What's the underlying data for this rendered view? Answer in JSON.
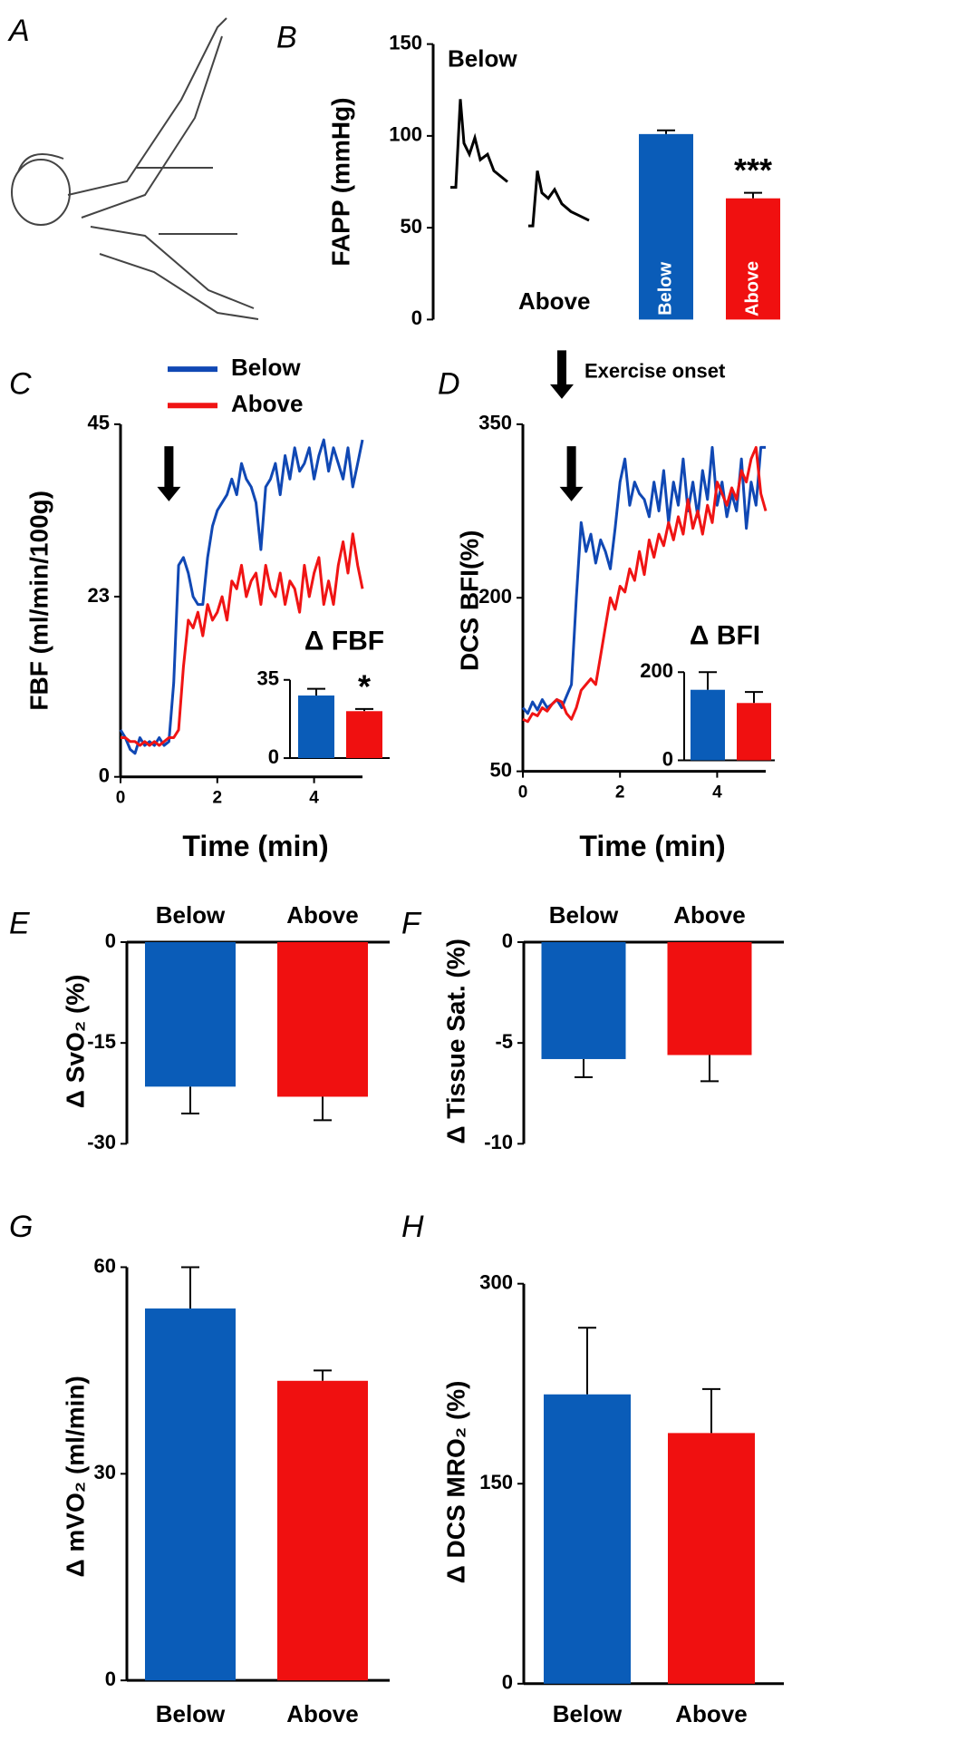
{
  "panel_a": {
    "label": "A"
  },
  "chart_data": [
    {
      "type": "bar",
      "panel": "B",
      "ylabel": "FAPP (mmHg)",
      "trace_labels": [
        "Below",
        "Above"
      ],
      "categories": [
        "Below",
        "Above"
      ],
      "values": [
        101,
        66
      ],
      "errors": [
        2,
        3
      ],
      "colors": [
        "#0a5cb8",
        "#f01010"
      ],
      "significance": [
        null,
        "***"
      ],
      "category_position": "inside",
      "ylim": [
        0,
        150
      ],
      "yticks": [
        0,
        50,
        100,
        150
      ]
    },
    {
      "type": "line",
      "panel": "C",
      "ylabel": "FBF (ml/min/100g)",
      "xlabel": "Time (min)",
      "legend": true,
      "onset_x": 1,
      "x": [
        0,
        0.1,
        0.2,
        0.3,
        0.4,
        0.5,
        0.6,
        0.7,
        0.8,
        0.9,
        1,
        1.1,
        1.2,
        1.3,
        1.4,
        1.5,
        1.6,
        1.7,
        1.8,
        1.9,
        2,
        2.1,
        2.2,
        2.3,
        2.4,
        2.5,
        2.6,
        2.7,
        2.8,
        2.9,
        3,
        3.1,
        3.2,
        3.3,
        3.4,
        3.5,
        3.6,
        3.7,
        3.8,
        3.9,
        4,
        4.1,
        4.2,
        4.3,
        4.4,
        4.5,
        4.6,
        4.7,
        4.8,
        4.9,
        5
      ],
      "series": [
        {
          "name": "Below",
          "color": "#1048b4",
          "values": [
            6,
            5,
            3.5,
            3,
            5,
            4,
            4.5,
            4,
            5,
            4,
            4.5,
            12,
            27,
            28,
            26,
            23,
            22,
            22,
            28,
            32,
            34,
            35,
            36,
            38,
            36,
            40,
            38,
            37,
            35,
            29,
            37,
            38,
            40,
            36,
            41,
            38,
            42,
            39,
            40,
            42,
            38,
            41,
            43,
            39,
            42,
            40,
            38,
            42,
            37,
            40,
            43
          ]
        },
        {
          "name": "Above",
          "color": "#f01414",
          "values": [
            5,
            5,
            4.5,
            4.5,
            4,
            4.5,
            4,
            4.5,
            4,
            4.5,
            5,
            5,
            6,
            14,
            20,
            19,
            21,
            18,
            22,
            20,
            21,
            23,
            20,
            25,
            24,
            27,
            23,
            25,
            26,
            22,
            27,
            24,
            23,
            26,
            22,
            25,
            24,
            21,
            27,
            23,
            26,
            28,
            22,
            25,
            22,
            27,
            30,
            26,
            31,
            27,
            24
          ]
        }
      ],
      "xlim": [
        0,
        5
      ],
      "xticks": [
        0,
        2,
        4
      ],
      "ylim": [
        0,
        45
      ],
      "yticks": [
        0,
        23,
        45
      ],
      "inset": {
        "title": "Δ FBF",
        "values": [
          28,
          21
        ],
        "errors": [
          3,
          1
        ],
        "colors": [
          "#0a5cb8",
          "#f01010"
        ],
        "significance": [
          null,
          "*"
        ],
        "ylim": [
          0,
          35
        ],
        "yticks": [
          0,
          35
        ]
      }
    },
    {
      "type": "line",
      "panel": "D",
      "ylabel": "DCS BFI(%)",
      "xlabel": "Time (min)",
      "annotation": "Exercise onset",
      "onset_x": 1,
      "x": [
        0,
        0.1,
        0.2,
        0.3,
        0.4,
        0.5,
        0.6,
        0.7,
        0.8,
        0.9,
        1,
        1.1,
        1.2,
        1.3,
        1.4,
        1.5,
        1.6,
        1.7,
        1.8,
        1.9,
        2,
        2.1,
        2.2,
        2.3,
        2.4,
        2.5,
        2.6,
        2.7,
        2.8,
        2.9,
        3,
        3.1,
        3.2,
        3.3,
        3.4,
        3.5,
        3.6,
        3.7,
        3.8,
        3.9,
        4,
        4.1,
        4.2,
        4.3,
        4.4,
        4.5,
        4.6,
        4.7,
        4.8,
        4.9,
        5
      ],
      "series": [
        {
          "color": "#1048b4",
          "values": [
            105,
            100,
            110,
            103,
            112,
            105,
            108,
            112,
            105,
            115,
            125,
            200,
            265,
            240,
            255,
            230,
            250,
            240,
            225,
            260,
            300,
            320,
            280,
            300,
            290,
            285,
            270,
            300,
            275,
            310,
            265,
            300,
            280,
            320,
            275,
            300,
            270,
            310,
            285,
            330,
            280,
            300,
            270,
            290,
            275,
            320,
            260,
            300,
            280,
            330,
            330
          ]
        },
        {
          "color": "#f01414",
          "values": [
            95,
            93,
            100,
            98,
            105,
            102,
            108,
            112,
            110,
            100,
            95,
            105,
            120,
            125,
            130,
            125,
            150,
            175,
            200,
            190,
            210,
            205,
            225,
            215,
            240,
            220,
            250,
            235,
            255,
            245,
            265,
            250,
            270,
            255,
            285,
            260,
            275,
            255,
            280,
            265,
            300,
            290,
            280,
            295,
            285,
            310,
            300,
            320,
            330,
            290,
            275
          ]
        }
      ],
      "xlim": [
        0,
        5
      ],
      "xticks": [
        0,
        2,
        4
      ],
      "ylim": [
        50,
        350
      ],
      "yticks": [
        50,
        200,
        350
      ],
      "inset": {
        "title": "Δ BFI",
        "values": [
          160,
          130
        ],
        "errors": [
          40,
          25
        ],
        "colors": [
          "#0a5cb8",
          "#f01010"
        ],
        "ylim": [
          0,
          200
        ],
        "yticks": [
          0,
          200
        ]
      }
    },
    {
      "type": "bar",
      "panel": "E",
      "ylabel": "Δ SvO₂ (%)",
      "categories": [
        "Below",
        "Above"
      ],
      "values": [
        -21.5,
        -23
      ],
      "errors": [
        4,
        3.5
      ],
      "colors": [
        "#0a5cb8",
        "#f01010"
      ],
      "category_position": "top",
      "ylim": [
        -30,
        0
      ],
      "yticks": [
        0,
        -15,
        -30
      ]
    },
    {
      "type": "bar",
      "panel": "F",
      "ylabel": "Δ Tissue Sat. (%)",
      "categories": [
        "Below",
        "Above"
      ],
      "values": [
        -5.8,
        -5.6
      ],
      "errors": [
        0.9,
        1.3
      ],
      "colors": [
        "#0a5cb8",
        "#f01010"
      ],
      "category_position": "top",
      "ylim": [
        -10,
        0
      ],
      "yticks": [
        0,
        -5,
        -10
      ]
    },
    {
      "type": "bar",
      "panel": "G",
      "ylabel": "Δ mVO₂ (ml/min)",
      "categories": [
        "Below",
        "Above"
      ],
      "values": [
        54,
        43.5
      ],
      "errors": [
        6,
        1.5
      ],
      "colors": [
        "#0a5cb8",
        "#f01010"
      ],
      "category_position": "bottom",
      "ylim": [
        0,
        60
      ],
      "yticks": [
        0,
        30,
        60
      ]
    },
    {
      "type": "bar",
      "panel": "H",
      "ylabel": "Δ DCS MRO₂ (%)",
      "categories": [
        "Below",
        "Above"
      ],
      "values": [
        217,
        188
      ],
      "errors": [
        50,
        33
      ],
      "colors": [
        "#0a5cb8",
        "#f01010"
      ],
      "category_position": "bottom",
      "ylim": [
        0,
        300
      ],
      "yticks": [
        0,
        150,
        300
      ]
    }
  ]
}
